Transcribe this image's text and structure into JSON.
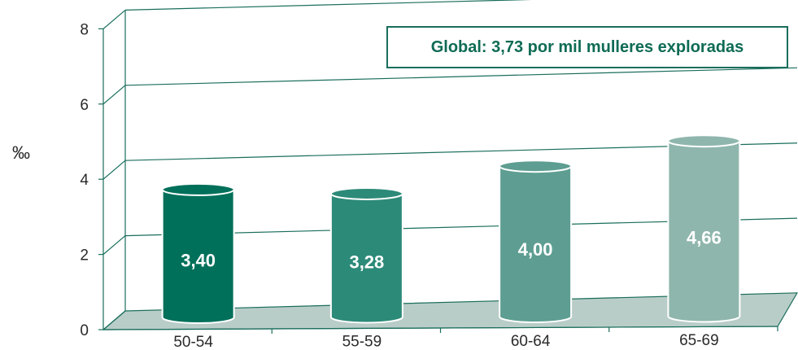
{
  "chart_data": {
    "type": "bar",
    "categories": [
      "50-54",
      "55-59",
      "60-64",
      "65-69"
    ],
    "values": [
      3.4,
      3.28,
      4.0,
      4.66
    ],
    "value_labels": [
      "3,40",
      "3,28",
      "4,00",
      "4,66"
    ],
    "ylabel": "‰",
    "ylim": [
      0,
      8
    ],
    "yticks": [
      "0",
      "2",
      "4",
      "6",
      "8"
    ],
    "grid": true,
    "annotation": "Global: 3,73 por mil mulleres exploradas",
    "colors": [
      "#00705a",
      "#2c8a78",
      "#5e9e92",
      "#8fb6ad"
    ],
    "axis_color": "#1a6e5c",
    "floor_color": "#b9cdc8"
  }
}
